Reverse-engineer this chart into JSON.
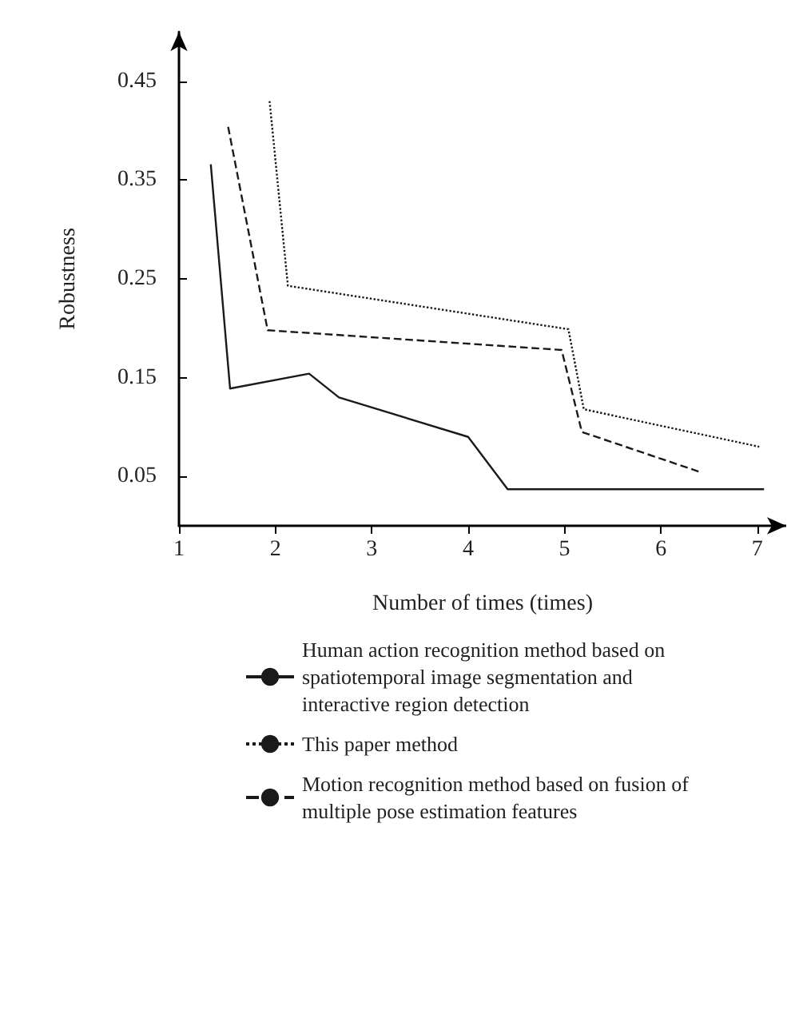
{
  "chart_data": {
    "type": "line",
    "xlabel": "Number of times (times)",
    "ylabel": "Robustness",
    "xlim": [
      1,
      7.3
    ],
    "xticks": [
      1,
      2,
      3,
      4,
      5,
      6,
      7
    ],
    "ylim": [
      0,
      0.5
    ],
    "yticks": [
      0.05,
      0.15,
      0.25,
      0.35,
      0.45
    ],
    "grid": false,
    "legend": "bottom",
    "marker": "none",
    "series": [
      {
        "name": "Human action recognition method based on spatiotemporal image segmentation and interactive region detection",
        "color": "#1a1a1a",
        "line_style": "solid",
        "x": [
          1.33,
          1.53,
          2.35,
          2.66,
          4.0,
          4.41,
          7.07
        ],
        "values": [
          0.366,
          0.139,
          0.154,
          0.13,
          0.09,
          0.037,
          0.037
        ]
      },
      {
        "name": "This paper method",
        "color": "#1a1a1a",
        "line_style": "dotted",
        "x": [
          1.94,
          2.13,
          5.04,
          5.2,
          7.02
        ],
        "values": [
          0.43,
          0.243,
          0.199,
          0.118,
          0.08
        ]
      },
      {
        "name": "Motion recognition method based on fusion of multiple pose estimation features",
        "color": "#1a1a1a",
        "line_style": "dashed",
        "x": [
          1.51,
          1.92,
          4.97,
          5.18,
          6.42
        ],
        "values": [
          0.404,
          0.198,
          0.178,
          0.095,
          0.054
        ]
      }
    ]
  }
}
